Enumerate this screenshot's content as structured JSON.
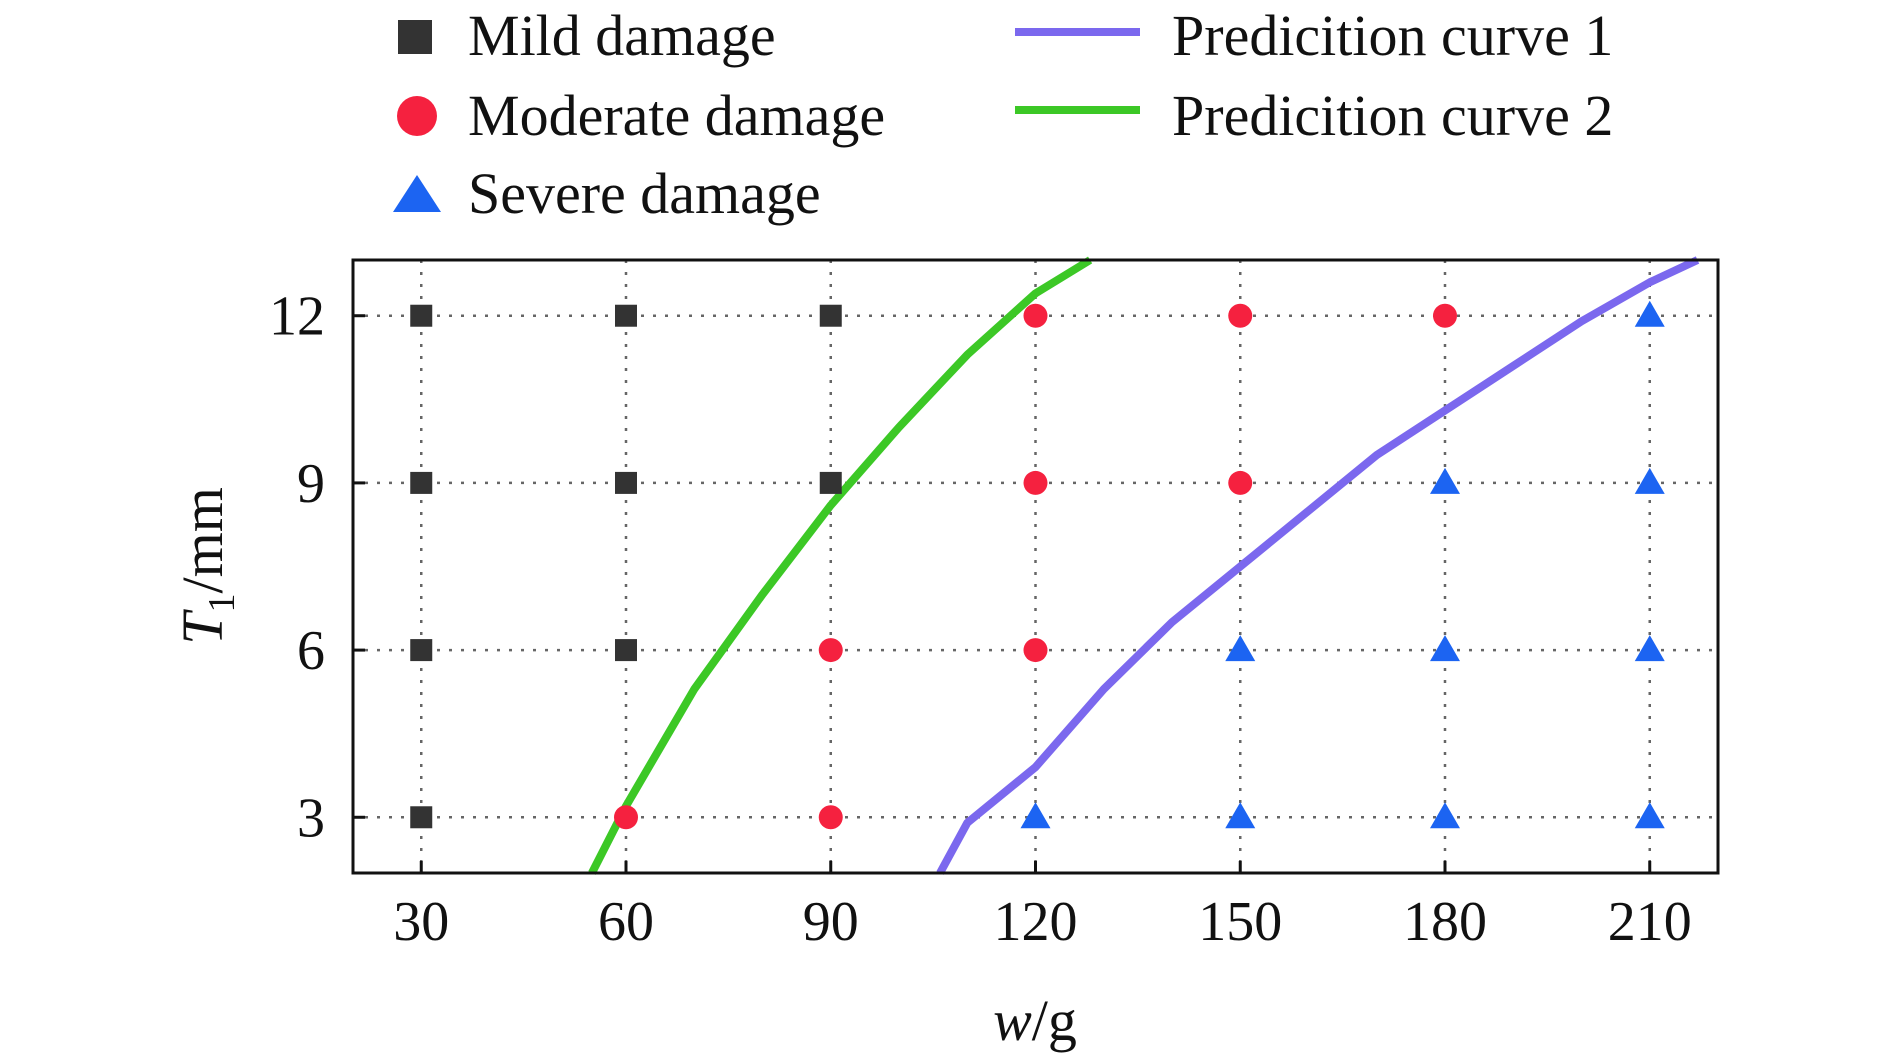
{
  "chart_data": {
    "type": "scatter",
    "xlabel": {
      "italic": "w",
      "rest": "/g"
    },
    "ylabel": {
      "italic": "T",
      "sub": "1",
      "rest": "/mm"
    },
    "xlim": [
      20,
      220
    ],
    "ylim": [
      2,
      13
    ],
    "xticks": [
      "30",
      "60",
      "90",
      "120",
      "150",
      "180",
      "210"
    ],
    "yticks": [
      "3",
      "6",
      "9",
      "12"
    ],
    "grid": "dotted",
    "legend_position": "top",
    "series": [
      {
        "name": "Mild damage",
        "marker": "square",
        "color": "#333333",
        "points": [
          [
            30,
            3
          ],
          [
            30,
            6
          ],
          [
            30,
            9
          ],
          [
            30,
            12
          ],
          [
            60,
            6
          ],
          [
            60,
            9
          ],
          [
            60,
            12
          ],
          [
            90,
            9
          ],
          [
            90,
            12
          ]
        ]
      },
      {
        "name": "Moderate damage",
        "marker": "circle",
        "color": "#f5213f",
        "points": [
          [
            60,
            3
          ],
          [
            90,
            3
          ],
          [
            90,
            6
          ],
          [
            120,
            6
          ],
          [
            120,
            9
          ],
          [
            120,
            12
          ],
          [
            150,
            9
          ],
          [
            150,
            12
          ],
          [
            180,
            12
          ]
        ]
      },
      {
        "name": "Severe damage",
        "marker": "triangle",
        "color": "#1c64f2",
        "points": [
          [
            120,
            3
          ],
          [
            150,
            3
          ],
          [
            150,
            6
          ],
          [
            180,
            3
          ],
          [
            180,
            6
          ],
          [
            180,
            9
          ],
          [
            210,
            3
          ],
          [
            210,
            6
          ],
          [
            210,
            9
          ],
          [
            210,
            12
          ]
        ]
      }
    ],
    "curves": [
      {
        "name": "Predicition curve 1",
        "color": "#7b68ee",
        "points": [
          [
            106,
            2
          ],
          [
            110,
            2.9
          ],
          [
            120,
            3.9
          ],
          [
            130,
            5.3
          ],
          [
            140,
            6.5
          ],
          [
            150,
            7.5
          ],
          [
            160,
            8.5
          ],
          [
            170,
            9.5
          ],
          [
            180,
            10.3
          ],
          [
            190,
            11.1
          ],
          [
            200,
            11.9
          ],
          [
            210,
            12.6
          ],
          [
            217,
            13
          ]
        ]
      },
      {
        "name": "Predicition curve 2",
        "color": "#3cc826",
        "points": [
          [
            55,
            2
          ],
          [
            60,
            3.2
          ],
          [
            70,
            5.3
          ],
          [
            80,
            7.0
          ],
          [
            90,
            8.6
          ],
          [
            100,
            10.0
          ],
          [
            110,
            11.3
          ],
          [
            120,
            12.4
          ],
          [
            128,
            13
          ]
        ]
      }
    ]
  }
}
